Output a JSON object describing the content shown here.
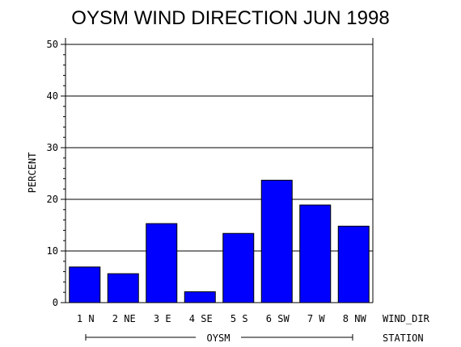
{
  "chart_data": {
    "type": "bar",
    "title": "OYSM WIND DIRECTION JUN 1998",
    "ylabel": "PERCENT",
    "xlabel": "WIND_DIR",
    "group_axis_label": "STATION",
    "group_label": "OYSM",
    "categories": [
      "1 N",
      "2 NE",
      "3 E",
      "4 SE",
      "5 S",
      "6 SW",
      "7 W",
      "8 NW"
    ],
    "values": [
      6.9,
      5.6,
      15.3,
      2.1,
      13.4,
      23.7,
      18.9,
      14.8
    ],
    "ylim": [
      0,
      50
    ],
    "yticks": [
      "0",
      "10",
      "20",
      "30",
      "40",
      "50"
    ],
    "bar_color": "#0000ff",
    "grid": true
  }
}
